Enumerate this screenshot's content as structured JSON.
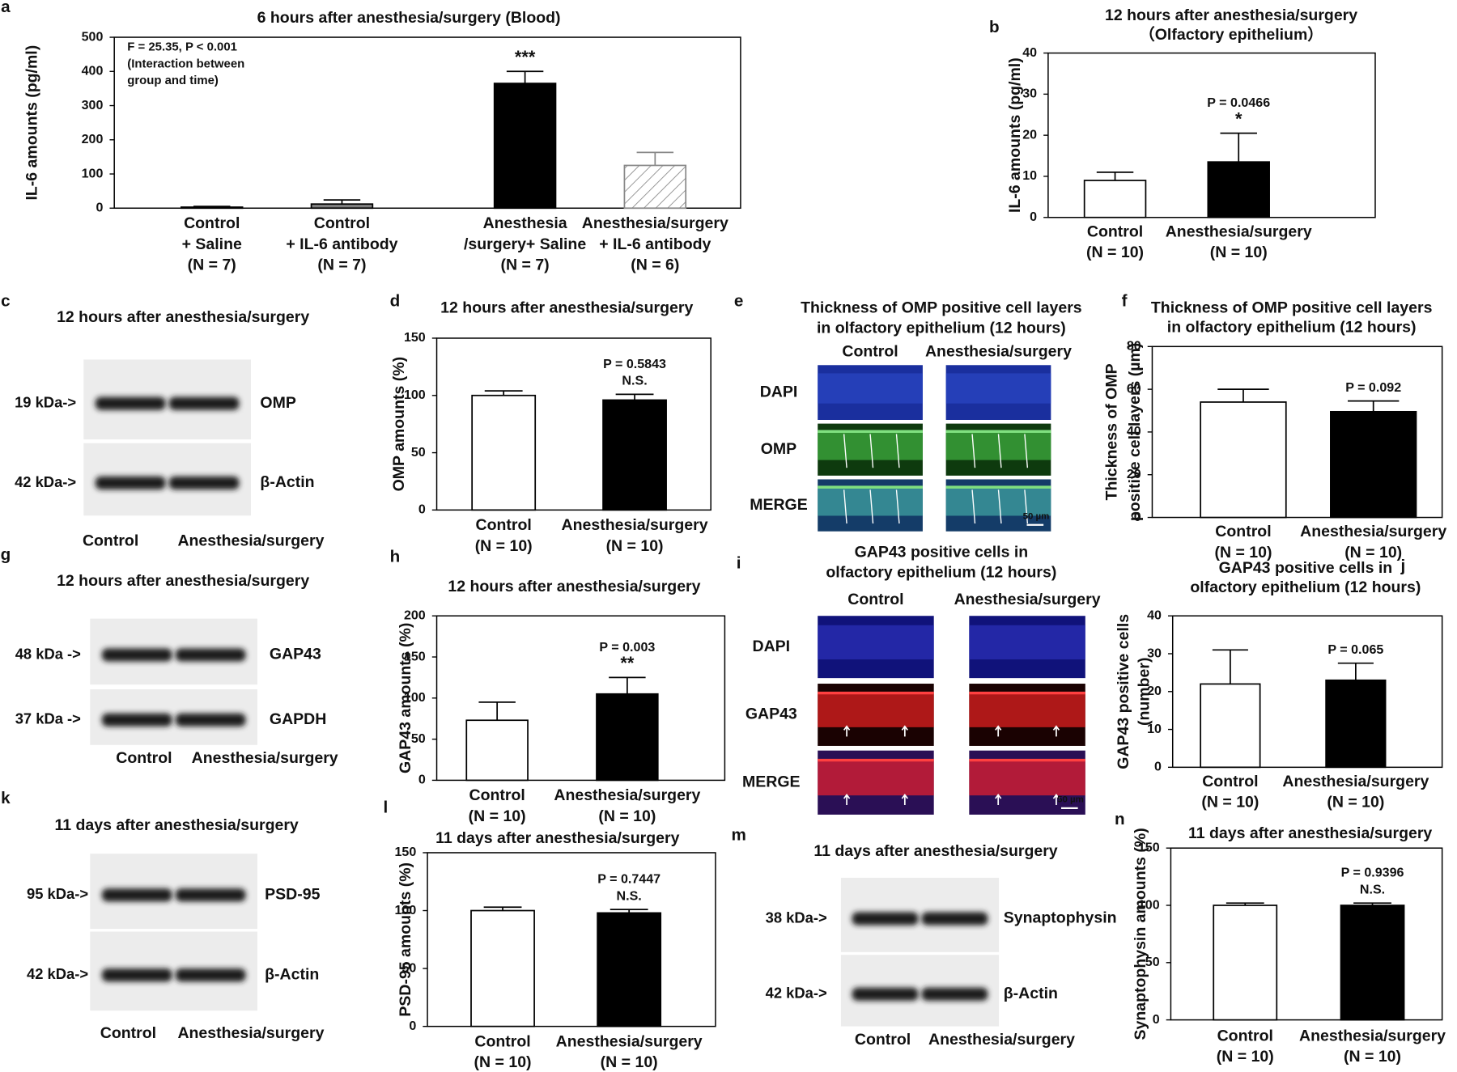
{
  "chart_data": [
    {
      "panel": "a",
      "type": "bar",
      "title": [
        "6 hours after anesthesia/surgery (Blood)"
      ],
      "ylabel": [
        "IL-6 amounts (pg/ml)"
      ],
      "stats": [
        "F = 25.35, P < 0.001",
        "(Interaction between",
        " group and time)"
      ],
      "categories": [
        [
          "Control",
          "+ Saline",
          "(N = 7)"
        ],
        [
          "Control",
          "+ IL-6 antibody",
          "(N = 7)"
        ],
        [
          "Anesthesia",
          "/surgery+ Saline",
          "(N = 7)"
        ],
        [
          "Anesthesia/surgery",
          "+ IL-6 antibody",
          "(N = 6)"
        ]
      ],
      "values": [
        3,
        12,
        365,
        125
      ],
      "errors": [
        2,
        12,
        35,
        38
      ],
      "colors": [
        "#ffffff",
        "#7f7f7f",
        "#000000",
        "#ffffff"
      ],
      "hatched": [
        false,
        false,
        false,
        true
      ],
      "annotations": [
        [],
        [],
        [
          "***"
        ],
        []
      ],
      "ylim": [
        0,
        500
      ],
      "yticks": [
        0,
        100,
        200,
        300,
        400,
        500
      ]
    },
    {
      "panel": "b",
      "type": "bar",
      "title": [
        "12 hours after anesthesia/surgery",
        "（Olfactory epithelium）"
      ],
      "ylabel": [
        "IL-6 amounts (pg/ml)"
      ],
      "categories": [
        [
          "Control",
          "(N = 10)"
        ],
        [
          "Anesthesia/surgery",
          "(N = 10)"
        ]
      ],
      "values": [
        9,
        13.5
      ],
      "errors": [
        2,
        7
      ],
      "colors": [
        "#ffffff",
        "#000000"
      ],
      "annotations": [
        [],
        [
          "P = 0.0466",
          "*"
        ]
      ],
      "ylim": [
        0,
        40
      ],
      "yticks": [
        0,
        10,
        20,
        30,
        40
      ]
    },
    {
      "panel": "d",
      "type": "bar",
      "title": [
        "12 hours after anesthesia/surgery"
      ],
      "ylabel": [
        "OMP amounts (%)"
      ],
      "categories": [
        [
          "Control",
          "(N = 10)"
        ],
        [
          "Anesthesia/surgery",
          "(N = 10)"
        ]
      ],
      "values": [
        100,
        96
      ],
      "errors": [
        4,
        5
      ],
      "colors": [
        "#ffffff",
        "#000000"
      ],
      "annotations": [
        [],
        [
          "P = 0.5843",
          "N.S."
        ]
      ],
      "ylim": [
        0,
        150
      ],
      "yticks": [
        0,
        50,
        100,
        150
      ]
    },
    {
      "panel": "f",
      "type": "bar",
      "title": [
        "Thickness of OMP positive cell layers",
        "in olfactory epithelium (12 hours)"
      ],
      "ylabel": [
        "Thickness of OMP",
        "positive cell layers (µm)"
      ],
      "categories": [
        [
          "Control",
          "(N = 10)"
        ],
        [
          "Anesthesia/surgery",
          "(N = 10)"
        ]
      ],
      "values": [
        54,
        49.5
      ],
      "errors": [
        6,
        5
      ],
      "colors": [
        "#ffffff",
        "#000000"
      ],
      "annotations": [
        [],
        [
          "P = 0.092"
        ]
      ],
      "ylim": [
        0,
        80
      ],
      "yticks": [
        0,
        20,
        40,
        60,
        80
      ]
    },
    {
      "panel": "h",
      "type": "bar",
      "title": [
        "12 hours after anesthesia/surgery"
      ],
      "ylabel": [
        "GAP43 amounts (%)"
      ],
      "categories": [
        [
          "Control",
          "(N = 10)"
        ],
        [
          "Anesthesia/surgery",
          "(N = 10)"
        ]
      ],
      "values": [
        73,
        105
      ],
      "errors": [
        22,
        20
      ],
      "colors": [
        "#ffffff",
        "#000000"
      ],
      "annotations": [
        [],
        [
          "P = 0.003",
          "**"
        ]
      ],
      "ylim": [
        0,
        200
      ],
      "yticks": [
        0,
        50,
        100,
        150,
        200
      ]
    },
    {
      "panel": "j",
      "type": "bar",
      "title": [
        "GAP43 positive cells in",
        "olfactory epithelium (12 hours)"
      ],
      "ylabel": [
        "GAP43 positive cells",
        "(number)"
      ],
      "categories": [
        [
          "Control",
          "(N = 10)"
        ],
        [
          "Anesthesia/surgery",
          "(N = 10)"
        ]
      ],
      "values": [
        22,
        23
      ],
      "errors": [
        9,
        4.5
      ],
      "colors": [
        "#ffffff",
        "#000000"
      ],
      "annotations": [
        [],
        [
          "P = 0.065"
        ]
      ],
      "ylim": [
        0,
        40
      ],
      "yticks": [
        0,
        10,
        20,
        30,
        40
      ]
    },
    {
      "panel": "l",
      "type": "bar",
      "title": [
        "11 days after anesthesia/surgery"
      ],
      "ylabel": [
        "PSD-95 amounts (%)"
      ],
      "categories": [
        [
          "Control",
          "(N = 10)"
        ],
        [
          "Anesthesia/surgery",
          "(N = 10)"
        ]
      ],
      "values": [
        100,
        98
      ],
      "errors": [
        3,
        3
      ],
      "colors": [
        "#ffffff",
        "#000000"
      ],
      "annotations": [
        [],
        [
          "P = 0.7447",
          "N.S."
        ]
      ],
      "ylim": [
        0,
        150
      ],
      "yticks": [
        0,
        50,
        100,
        150
      ]
    },
    {
      "panel": "n",
      "type": "bar",
      "title": [
        "11 days after anesthesia/surgery"
      ],
      "ylabel": [
        "Synaptophysin amounts (%)"
      ],
      "categories": [
        [
          "Control",
          "(N = 10)"
        ],
        [
          "Anesthesia/surgery",
          "(N = 10)"
        ]
      ],
      "values": [
        100,
        100
      ],
      "errors": [
        2,
        2
      ],
      "colors": [
        "#ffffff",
        "#000000"
      ],
      "annotations": [
        [],
        [
          "P = 0.9396",
          "N.S."
        ]
      ],
      "ylim": [
        0,
        150
      ],
      "yticks": [
        0,
        50,
        100,
        150
      ]
    }
  ],
  "blots": [
    {
      "panel": "c",
      "title": "12 hours after anesthesia/surgery",
      "lanes": [
        "Control",
        "Anesthesia/surgery"
      ],
      "rows": [
        {
          "marker": "19 kDa->",
          "protein": "OMP"
        },
        {
          "marker": "42 kDa->",
          "protein": "β-Actin"
        }
      ]
    },
    {
      "panel": "g",
      "title": "12 hours after anesthesia/surgery",
      "lanes": [
        "Control",
        "Anesthesia/surgery"
      ],
      "rows": [
        {
          "marker": "48 kDa ->",
          "protein": "GAP43"
        },
        {
          "marker": "37 kDa ->",
          "protein": "GAPDH"
        }
      ]
    },
    {
      "panel": "k",
      "title": "11 days after anesthesia/surgery",
      "lanes": [
        "Control",
        "Anesthesia/surgery"
      ],
      "rows": [
        {
          "marker": "95 kDa->",
          "protein": "PSD-95"
        },
        {
          "marker": "42 kDa->",
          "protein": "β-Actin"
        }
      ]
    },
    {
      "panel": "m",
      "title": "11 days after anesthesia/surgery",
      "lanes": [
        "Control",
        "Anesthesia/surgery"
      ],
      "rows": [
        {
          "marker": "38 kDa->",
          "protein": "Synaptophysin"
        },
        {
          "marker": "42 kDa->",
          "protein": "β-Actin"
        }
      ]
    }
  ],
  "micrographs": [
    {
      "panel": "e",
      "title": [
        "Thickness of OMP positive cell layers",
        "in olfactory epithelium (12 hours)"
      ],
      "columns": [
        "Control",
        "Anesthesia/surgery"
      ],
      "rows": [
        {
          "label": "DAPI",
          "color": "#2e6db4"
        },
        {
          "label": "OMP",
          "color": "#35a835"
        },
        {
          "label": "MERGE",
          "color": "#e32020"
        }
      ],
      "scale_bar": "50 µm"
    },
    {
      "panel": "i",
      "title": [
        "GAP43 positive cells in",
        "olfactory epithelium (12 hours)"
      ],
      "columns": [
        "Control",
        "Anesthesia/surgery"
      ],
      "rows": [
        {
          "label": "DAPI",
          "color": "#2e6db4"
        },
        {
          "label": "GAP43",
          "color": "#e32020"
        },
        {
          "label": "MERGE",
          "color": "#e8843c"
        }
      ],
      "scale_bar": "50 µm"
    }
  ]
}
